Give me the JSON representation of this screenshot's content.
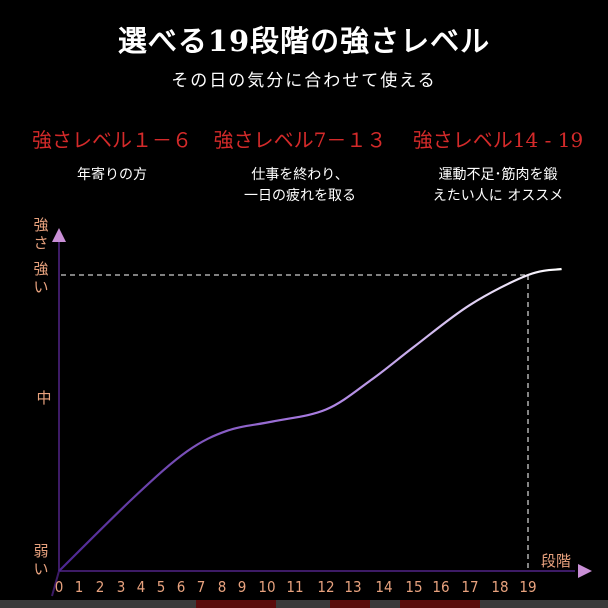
{
  "header": {
    "title": "選べる19段階の強さレベル",
    "subtitle": "その日の気分に合わせて使える"
  },
  "levels": [
    {
      "heading": "強さレベル１－６",
      "desc": [
        "年寄りの方"
      ]
    },
    {
      "heading": "強さレベル7－１３",
      "desc": [
        "仕事を終わり、",
        "一日の疲れを取る"
      ]
    },
    {
      "heading": "強さレベル14 - 19",
      "desc": [
        "運動不足･筋肉を鍛",
        "えたい人に オススメ"
      ]
    }
  ],
  "colors": {
    "heading": "#d42a2a",
    "axis": "#3d1b66",
    "arrow": "#c98fd6",
    "label": "#e8a27e",
    "curve_start": "#4b2590",
    "curve_mid": "#a77ae0",
    "curve_end": "#ffffff",
    "guide": "#cccccc"
  },
  "chart_data": {
    "type": "line",
    "ylabel": "強さ",
    "xlabel": "段階",
    "y_tick_labels": {
      "weak": "弱い",
      "mid": "中",
      "strong": "強い"
    },
    "x_ticks": [
      "0",
      "1",
      "2",
      "3",
      "4",
      "5",
      "6",
      "7",
      "8",
      "9",
      "10",
      "11",
      "12",
      "13",
      "14",
      "15",
      "16",
      "17",
      "18",
      "19"
    ],
    "ylim": [
      0,
      100
    ],
    "xlim": [
      0,
      20.5
    ],
    "grid": false,
    "y_tick_values": {
      "weak": 0,
      "mid": 58,
      "strong": 99
    },
    "guide_level": 19,
    "series": [
      {
        "points": [
          [
            0,
            0
          ],
          [
            3.7,
            25
          ],
          [
            6.3,
            40
          ],
          [
            8.3,
            47
          ],
          [
            10.2,
            50
          ],
          [
            12,
            54
          ],
          [
            13.6,
            64
          ],
          [
            15,
            75
          ],
          [
            17,
            89
          ],
          [
            19,
            99
          ],
          [
            20.2,
            101
          ]
        ]
      }
    ]
  }
}
